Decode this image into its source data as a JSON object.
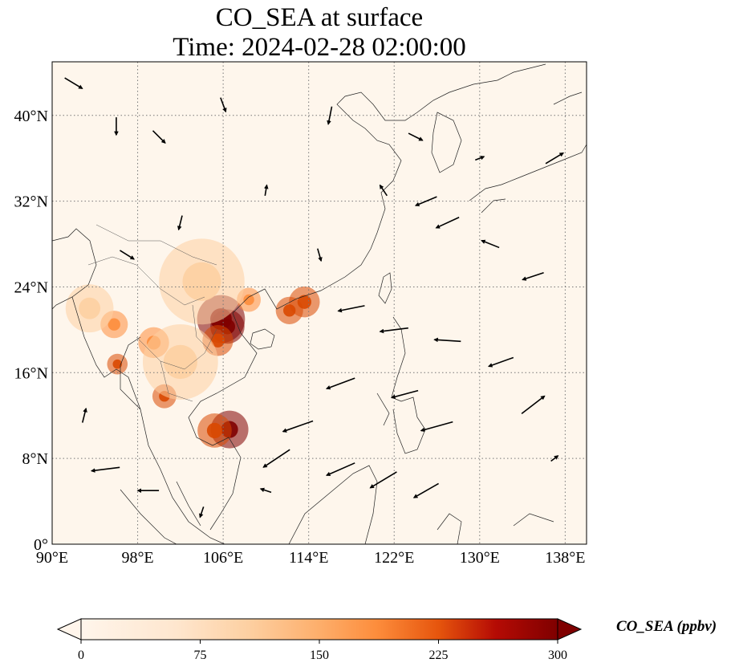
{
  "title": {
    "line1": "CO_SEA at surface",
    "line2": "Time: 2024-02-28 02:00:00"
  },
  "colorbar": {
    "label": "CO_SEA (ppbv)",
    "ticks": [
      "0",
      "75",
      "150",
      "225",
      "300"
    ],
    "range": [
      0,
      300
    ],
    "colors": [
      "#fff5eb",
      "#fdd0a2",
      "#fd8d3c",
      "#d94801",
      "#7f0000"
    ]
  },
  "map": {
    "lon_range": [
      90,
      140
    ],
    "lat_range": [
      0,
      45
    ],
    "lon_ticks": [
      "90°E",
      "98°E",
      "106°E",
      "114°E",
      "122°E",
      "130°E",
      "138°E"
    ],
    "lat_ticks": [
      "0°",
      "8°N",
      "16°N",
      "24°N",
      "32°N",
      "40°N"
    ],
    "background": "#fef6ec",
    "gridline": "dotted",
    "hotspots": [
      {
        "lon": 105.8,
        "lat": 21.0,
        "value": 300,
        "spread": 1.4
      },
      {
        "lon": 106.4,
        "lat": 20.3,
        "value": 280,
        "spread": 1.0
      },
      {
        "lon": 105.5,
        "lat": 19.0,
        "value": 220,
        "spread": 0.9
      },
      {
        "lon": 113.6,
        "lat": 22.6,
        "value": 260,
        "spread": 0.9
      },
      {
        "lon": 112.2,
        "lat": 21.8,
        "value": 200,
        "spread": 0.8
      },
      {
        "lon": 108.4,
        "lat": 22.8,
        "value": 150,
        "spread": 0.7
      },
      {
        "lon": 106.6,
        "lat": 10.7,
        "value": 300,
        "spread": 1.1
      },
      {
        "lon": 105.2,
        "lat": 10.6,
        "value": 200,
        "spread": 1.0
      },
      {
        "lon": 100.5,
        "lat": 13.8,
        "value": 260,
        "spread": 0.7
      },
      {
        "lon": 99.5,
        "lat": 18.8,
        "value": 170,
        "spread": 0.9
      },
      {
        "lon": 102.0,
        "lat": 17.0,
        "value": 110,
        "spread": 2.2
      },
      {
        "lon": 96.1,
        "lat": 16.8,
        "value": 200,
        "spread": 0.6
      },
      {
        "lon": 95.8,
        "lat": 20.5,
        "value": 130,
        "spread": 0.8
      },
      {
        "lon": 93.5,
        "lat": 22.0,
        "value": 70,
        "spread": 1.4
      },
      {
        "lon": 104.0,
        "lat": 24.5,
        "value": 60,
        "spread": 2.5
      }
    ],
    "wind_arrows": [
      {
        "lon": 92,
        "lat": 43,
        "u": 1,
        "v": -0.6
      },
      {
        "lon": 96,
        "lat": 39,
        "u": 0,
        "v": -1
      },
      {
        "lon": 100,
        "lat": 38,
        "u": 0.7,
        "v": -0.7
      },
      {
        "lon": 106,
        "lat": 41,
        "u": 0.3,
        "v": -0.8
      },
      {
        "lon": 116,
        "lat": 40,
        "u": -0.2,
        "v": -1
      },
      {
        "lon": 124,
        "lat": 38,
        "u": 0.8,
        "v": -0.4
      },
      {
        "lon": 130,
        "lat": 36,
        "u": 0.5,
        "v": 0.2
      },
      {
        "lon": 137,
        "lat": 36,
        "u": 1,
        "v": 0.6
      },
      {
        "lon": 125,
        "lat": 32,
        "u": -1.2,
        "v": -0.5
      },
      {
        "lon": 127,
        "lat": 30,
        "u": -1.3,
        "v": -0.6
      },
      {
        "lon": 131,
        "lat": 28,
        "u": -1,
        "v": 0.4
      },
      {
        "lon": 135,
        "lat": 25,
        "u": -1.2,
        "v": -0.4
      },
      {
        "lon": 118,
        "lat": 22,
        "u": -1.5,
        "v": -0.3
      },
      {
        "lon": 122,
        "lat": 20,
        "u": -1.6,
        "v": -0.2
      },
      {
        "lon": 127,
        "lat": 19,
        "u": -1.5,
        "v": 0.1
      },
      {
        "lon": 132,
        "lat": 17,
        "u": -1.4,
        "v": -0.5
      },
      {
        "lon": 117,
        "lat": 15,
        "u": -1.6,
        "v": -0.6
      },
      {
        "lon": 123,
        "lat": 14,
        "u": -1.5,
        "v": -0.4
      },
      {
        "lon": 126,
        "lat": 11,
        "u": -1.8,
        "v": -0.5
      },
      {
        "lon": 113,
        "lat": 11,
        "u": -1.7,
        "v": -0.6
      },
      {
        "lon": 111,
        "lat": 8,
        "u": -1.5,
        "v": -1.0
      },
      {
        "lon": 117,
        "lat": 7,
        "u": -1.6,
        "v": -0.7
      },
      {
        "lon": 121,
        "lat": 6,
        "u": -1.5,
        "v": -0.9
      },
      {
        "lon": 125,
        "lat": 5,
        "u": -1.4,
        "v": -0.8
      },
      {
        "lon": 135,
        "lat": 13,
        "u": 1.3,
        "v": 1
      },
      {
        "lon": 137,
        "lat": 8,
        "u": 0.4,
        "v": 0.3
      },
      {
        "lon": 95,
        "lat": 7,
        "u": -1.6,
        "v": -0.2
      },
      {
        "lon": 99,
        "lat": 5,
        "u": -1.2,
        "v": 0
      },
      {
        "lon": 93,
        "lat": 12,
        "u": 0.2,
        "v": 0.8
      },
      {
        "lon": 97,
        "lat": 27,
        "u": 0.8,
        "v": -0.5
      },
      {
        "lon": 102,
        "lat": 30,
        "u": -0.2,
        "v": -0.8
      },
      {
        "lon": 110,
        "lat": 33,
        "u": 0.1,
        "v": 0.6
      },
      {
        "lon": 115,
        "lat": 27,
        "u": 0.2,
        "v": -0.7
      },
      {
        "lon": 110,
        "lat": 5,
        "u": -0.6,
        "v": 0.2
      },
      {
        "lon": 104,
        "lat": 3,
        "u": -0.2,
        "v": -0.6
      },
      {
        "lon": 121,
        "lat": 33,
        "u": -0.4,
        "v": 0.6
      }
    ]
  }
}
